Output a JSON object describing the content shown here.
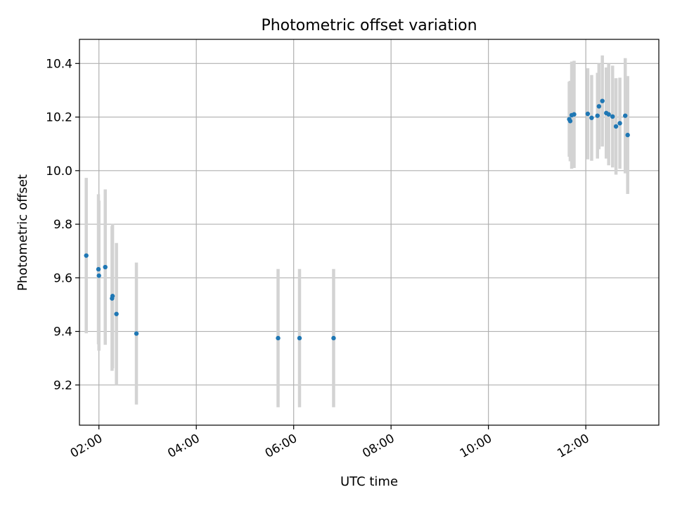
{
  "chart_data": {
    "type": "scatter",
    "title": "Photometric offset variation",
    "xlabel": "UTC time",
    "ylabel": "Photometric offset",
    "x_unit": "UTC hour",
    "xlim": [
      1.6,
      13.5
    ],
    "ylim": [
      9.05,
      10.49
    ],
    "x_ticks": [
      {
        "value": 2,
        "label": "02:00"
      },
      {
        "value": 4,
        "label": "04:00"
      },
      {
        "value": 6,
        "label": "06:00"
      },
      {
        "value": 8,
        "label": "08:00"
      },
      {
        "value": 10,
        "label": "10:00"
      },
      {
        "value": 12,
        "label": "12:00"
      }
    ],
    "y_ticks": [
      {
        "value": 9.2,
        "label": "9.2"
      },
      {
        "value": 9.4,
        "label": "9.4"
      },
      {
        "value": 9.6,
        "label": "9.6"
      },
      {
        "value": 9.8,
        "label": "9.8"
      },
      {
        "value": 10.0,
        "label": "10.0"
      },
      {
        "value": 10.2,
        "label": "10.2"
      },
      {
        "value": 10.4,
        "label": "10.4"
      }
    ],
    "grid": true,
    "point_color": "#1f77b4",
    "errorbar_color": "#d3d3d3",
    "points": [
      {
        "x": 1.74,
        "y": 9.683,
        "err": 0.29
      },
      {
        "x": 1.99,
        "y": 9.632,
        "err": 0.28
      },
      {
        "x": 2.0,
        "y": 9.608,
        "err": 0.28
      },
      {
        "x": 2.13,
        "y": 9.64,
        "err": 0.29
      },
      {
        "x": 2.27,
        "y": 9.523,
        "err": 0.27
      },
      {
        "x": 2.28,
        "y": 9.532,
        "err": 0.27
      },
      {
        "x": 2.36,
        "y": 9.465,
        "err": 0.265
      },
      {
        "x": 2.77,
        "y": 9.392,
        "err": 0.265
      },
      {
        "x": 5.68,
        "y": 9.375,
        "err": 0.258
      },
      {
        "x": 6.12,
        "y": 9.375,
        "err": 0.258
      },
      {
        "x": 6.82,
        "y": 9.375,
        "err": 0.258
      },
      {
        "x": 11.66,
        "y": 10.192,
        "err": 0.14
      },
      {
        "x": 11.68,
        "y": 10.185,
        "err": 0.15
      },
      {
        "x": 11.71,
        "y": 10.207,
        "err": 0.2
      },
      {
        "x": 11.76,
        "y": 10.21,
        "err": 0.2
      },
      {
        "x": 12.04,
        "y": 10.212,
        "err": 0.17
      },
      {
        "x": 12.12,
        "y": 10.197,
        "err": 0.16
      },
      {
        "x": 12.24,
        "y": 10.205,
        "err": 0.16
      },
      {
        "x": 12.27,
        "y": 10.24,
        "err": 0.16
      },
      {
        "x": 12.34,
        "y": 10.26,
        "err": 0.17
      },
      {
        "x": 12.42,
        "y": 10.215,
        "err": 0.17
      },
      {
        "x": 12.47,
        "y": 10.21,
        "err": 0.19
      },
      {
        "x": 12.55,
        "y": 10.202,
        "err": 0.19
      },
      {
        "x": 12.62,
        "y": 10.165,
        "err": 0.18
      },
      {
        "x": 12.7,
        "y": 10.177,
        "err": 0.17
      },
      {
        "x": 12.81,
        "y": 10.205,
        "err": 0.215
      },
      {
        "x": 12.86,
        "y": 10.133,
        "err": 0.22
      }
    ]
  }
}
